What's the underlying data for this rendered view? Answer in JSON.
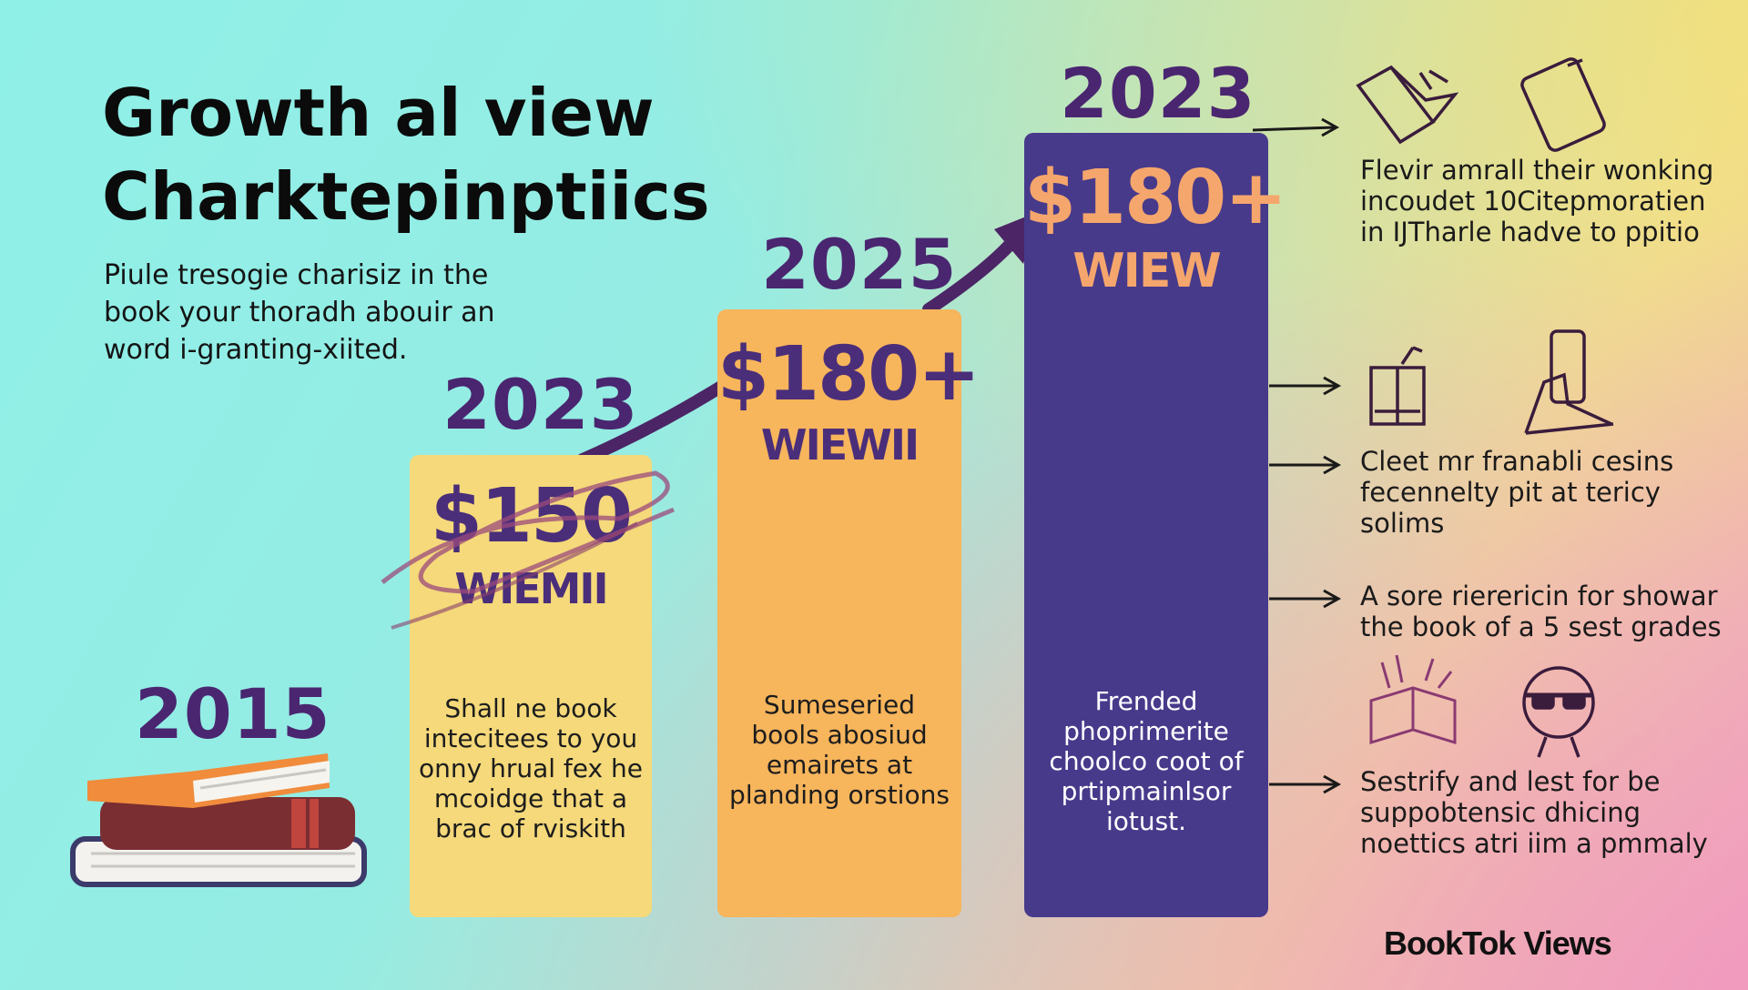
{
  "colors": {
    "bar_2023_small": "#f5d97a",
    "bar_2025": "#f7b55c",
    "bar_2023_large": "#473a8b",
    "purple_text": "#4a2670",
    "orange_text": "#f5a66c"
  },
  "header": {
    "title_line1": "Growth al view",
    "title_line2": "Charktepinptiics",
    "subtitle": "Piule tresogie charisiz in the book your thoradh abouir an word i-granting-xiited."
  },
  "chart_data": {
    "type": "bar",
    "categories": [
      "2015",
      "2023",
      "2025",
      "2023"
    ],
    "values": [
      0,
      150,
      180,
      180
    ],
    "value_labels": [
      "",
      "$150",
      "$180+",
      "$180+"
    ],
    "unit_labels": [
      "",
      "WIEMII",
      "WIEWII",
      "WIEW"
    ],
    "bar_texts": [
      "",
      "Shall ne book intecitees to you onny hrual fex he mcoidge that a brac of rviskith",
      "Sumeseried bools abosiud emairets at planding orstions",
      "Frended phoprimerite choolco coot of prtipmainlsor iotust."
    ],
    "title": "Growth al view Charktepinptiics",
    "ylabel": ""
  },
  "notes": [
    "Flevir amrall their wonking incoudet 10Citepmoratien in IJTharle hadve to ppitio",
    "Cleet mr franabli cesins fecennelty pit at tericy solims",
    "A sore rierericin for showar the book of a 5 sest grades",
    "Sestrify and lest for be suppobtensic dhicing noettics atri iim a pmmaly"
  ],
  "icons": [
    "open-book-icon",
    "tablet-icon",
    "book-stand-icon",
    "phone-hand-icon",
    "magic-book-icon",
    "reader-glasses-icon",
    "book-stack-icon"
  ],
  "brand": "BookTok Views"
}
